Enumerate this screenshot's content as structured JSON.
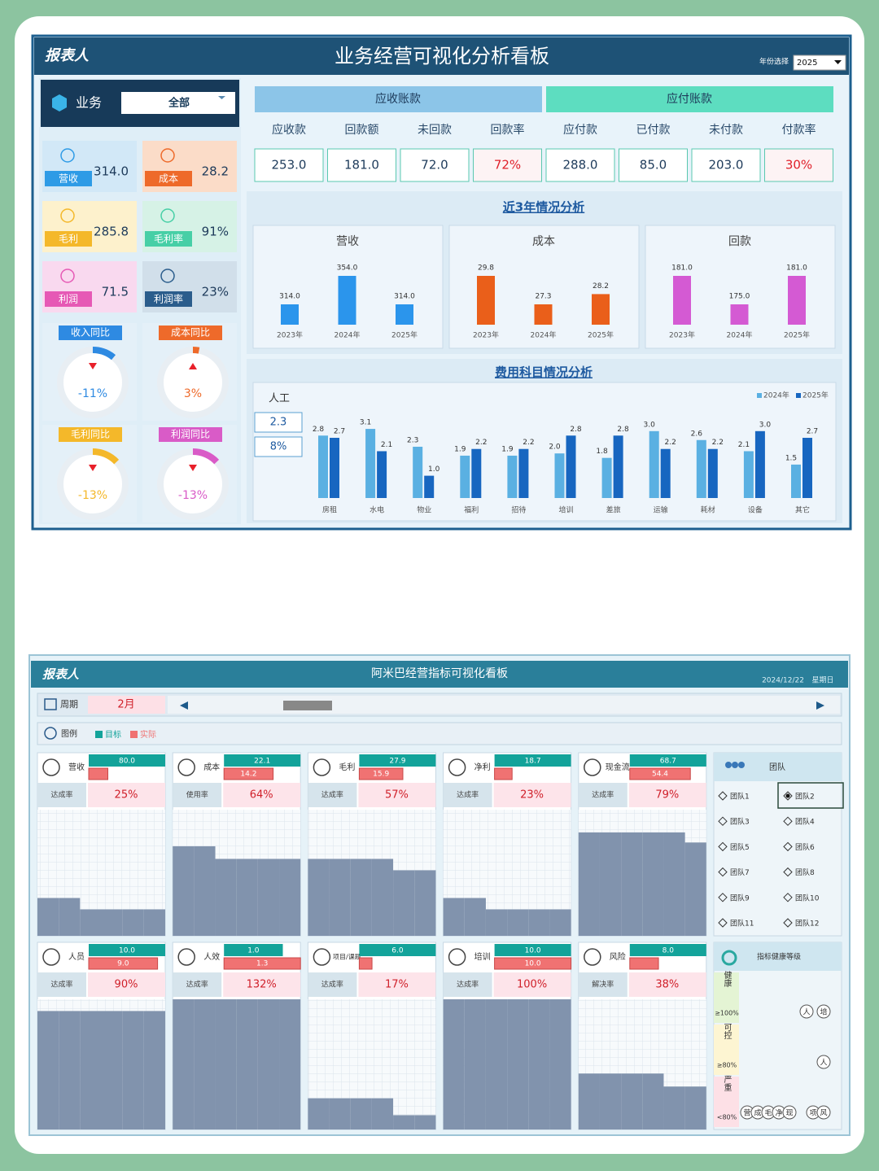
{
  "board1": {
    "logo": "报表人",
    "title": "业务经营可视化分析看板",
    "year_label": "年份选择",
    "year": "2025",
    "business_label": "业务",
    "business": "全部",
    "kpis": [
      {
        "label": "营收",
        "value": "314.0",
        "color": "#2e9be6",
        "bg": "#d2e8f7"
      },
      {
        "label": "成本",
        "value": "28.2",
        "color": "#ee6a2a",
        "bg": "#fbdcc8"
      },
      {
        "label": "毛利",
        "value": "285.8",
        "color": "#f4b82a",
        "bg": "#fdf1cc"
      },
      {
        "label": "毛利率",
        "value": "91%",
        "color": "#47cfa6",
        "bg": "#d6f2e6"
      },
      {
        "label": "利润",
        "value": "71.5",
        "color": "#e659b5",
        "bg": "#f9d9ef"
      },
      {
        "label": "利润率",
        "value": "23%",
        "color": "#2b5d8c",
        "bg": "#d1dfea"
      }
    ],
    "gauges": [
      {
        "label": "收入同比",
        "value": -11,
        "value_label": "-11%",
        "color": "#2e8ae2"
      },
      {
        "label": "成本同比",
        "value": 3,
        "value_label": "3%",
        "color": "#ee6a2a"
      },
      {
        "label": "毛利同比",
        "value": -13,
        "value_label": "-13%",
        "color": "#f4b82a"
      },
      {
        "label": "利润同比",
        "value": -13,
        "value_label": "-13%",
        "color": "#d95bc7"
      }
    ],
    "receivable": {
      "title": "应收账款",
      "columns": [
        "应收款",
        "回款额",
        "未回款",
        "回款率"
      ],
      "values": [
        "253.0",
        "181.0",
        "72.0",
        "72%"
      ]
    },
    "payable": {
      "title": "应付账款",
      "columns": [
        "应付款",
        "已付款",
        "未付款",
        "付款率"
      ],
      "values": [
        "288.0",
        "85.0",
        "203.0",
        "30%"
      ]
    },
    "trend": {
      "title": "近3年情况分析",
      "charts": [
        {
          "type": "bar",
          "title": "营收",
          "categories": [
            "2023年",
            "2024年",
            "2025年"
          ],
          "values": [
            314,
            354,
            314
          ],
          "value_labels": [
            "314.0",
            "354.0",
            "314.0"
          ],
          "color": "#2b95ec"
        },
        {
          "type": "bar",
          "title": "成本",
          "categories": [
            "2023年",
            "2024年",
            "2025年"
          ],
          "values": [
            29.8,
            27.3,
            28.2
          ],
          "value_labels": [
            "29.8",
            "27.3",
            "28.2"
          ],
          "color": "#ea5f1a"
        },
        {
          "type": "bar",
          "title": "回款",
          "categories": [
            "2023年",
            "2024年",
            "2025年"
          ],
          "values": [
            181,
            175,
            181
          ],
          "value_labels": [
            "181.0",
            "175.0",
            "181.0"
          ],
          "color": "#d45ad3"
        }
      ]
    },
    "expense": {
      "type": "bar",
      "title": "费用科目情况分析",
      "labor_label": "人工",
      "labor_value": "2.3",
      "labor_share": "8%",
      "categories": [
        "房租",
        "水电",
        "物业",
        "福利",
        "招待",
        "培训",
        "差旅",
        "运输",
        "耗材",
        "设备",
        "其它"
      ],
      "series": [
        {
          "name": "2024年",
          "color": "#5ab0e2",
          "values": [
            2.8,
            3.1,
            2.3,
            1.9,
            1.9,
            2.0,
            1.8,
            3.0,
            2.6,
            2.1,
            1.5
          ],
          "value_labels": [
            "2.8",
            "3.1",
            "2.3",
            "1.9",
            "1.9",
            "2.0",
            "1.8",
            "3.0",
            "2.6",
            "2.1",
            "1.5"
          ]
        },
        {
          "name": "2025年",
          "color": "#1766c0",
          "values": [
            2.7,
            2.1,
            1.0,
            2.2,
            2.2,
            2.8,
            2.8,
            2.2,
            2.2,
            3.0,
            2.7
          ],
          "value_labels": [
            "2.7",
            "2.1",
            "1.0",
            "2.2",
            "2.2",
            "2.8",
            "2.8",
            "2.2",
            "2.2",
            "3.0",
            "2.7"
          ]
        }
      ]
    }
  },
  "board2": {
    "logo": "报表人",
    "title": "阿米巴经营指标可视化看板",
    "date": "2024/12/22",
    "weekday": "星期日",
    "period_label": "周期",
    "period": "2月",
    "legend_label": "图例",
    "target_name": "目标",
    "actual_name": "实际",
    "target_color": "#13a39a",
    "actual_color": "#f07272",
    "cards": [
      {
        "label": "营收",
        "target": 80,
        "target_label": "80.0",
        "actual": 20,
        "metric": "达成率",
        "rate": "25%",
        "steps": [
          30,
          30,
          21,
          21,
          21,
          21
        ]
      },
      {
        "label": "成本",
        "target": 22.1,
        "target_label": "22.1",
        "actual": 14.2,
        "actual_label": "14.2",
        "metric": "使用率",
        "rate": "64%",
        "steps": [
          71,
          71,
          61,
          61,
          61,
          61
        ]
      },
      {
        "label": "毛利",
        "target": 27.9,
        "target_label": "27.9",
        "actual": 15.9,
        "actual_label": "15.9",
        "metric": "达成率",
        "rate": "57%",
        "steps": [
          61,
          61,
          61,
          61,
          52,
          52
        ]
      },
      {
        "label": "净利",
        "target": 18.7,
        "target_label": "18.7",
        "actual": 4.3,
        "metric": "达成率",
        "rate": "23%",
        "steps": [
          30,
          30,
          21,
          21,
          21,
          21
        ]
      },
      {
        "label": "现金流",
        "target": 68.7,
        "target_label": "68.7",
        "actual": 54.4,
        "actual_label": "54.4",
        "metric": "达成率",
        "rate": "79%",
        "steps": [
          82,
          82,
          82,
          82,
          82,
          74
        ]
      },
      {
        "label": "人员",
        "target": 10,
        "target_label": "10.0",
        "actual": 9,
        "actual_label": "9.0",
        "metric": "达成率",
        "rate": "90%",
        "steps": [
          91,
          91,
          91,
          91,
          91,
          91
        ]
      },
      {
        "label": "人效",
        "target": 1,
        "target_label": "1.0",
        "actual": 1.3,
        "actual_label": "1.3",
        "metric": "达成率",
        "rate": "132%",
        "steps": [
          100,
          100,
          100,
          100,
          100,
          100
        ]
      },
      {
        "label": "项目/课题",
        "target": 6,
        "target_label": "6.0",
        "actual": 1,
        "metric": "达成率",
        "rate": "17%",
        "steps": [
          24,
          24,
          24,
          24,
          11,
          11
        ]
      },
      {
        "label": "培训",
        "target": 10,
        "target_label": "10.0",
        "actual": 10,
        "actual_label": "10.0",
        "metric": "达成率",
        "rate": "100%",
        "steps": [
          100,
          100,
          100,
          100,
          100,
          100
        ]
      },
      {
        "label": "风险",
        "target": 8,
        "target_label": "8.0",
        "actual": 3,
        "metric": "解决率",
        "rate": "38%",
        "steps": [
          43,
          43,
          43,
          43,
          33,
          33
        ]
      }
    ],
    "team": {
      "title": "团队",
      "options": [
        "团队1",
        "团队2",
        "团队3",
        "团队4",
        "团队5",
        "团队6",
        "团队7",
        "团队8",
        "团队9",
        "团队10",
        "团队11",
        "团队12"
      ],
      "selected": 1
    },
    "health": {
      "title": "指标健康等级",
      "levels": [
        {
          "name": "健康",
          "threshold": "≥100%",
          "color": "#e4f4d4",
          "items": [
            "人",
            "培"
          ]
        },
        {
          "name": "可控",
          "threshold": "≥80%",
          "color": "#fdf5d2",
          "items": [
            "人"
          ]
        },
        {
          "name": "严重",
          "threshold": "<80%",
          "color": "#fde0e6",
          "items": [
            "营",
            "成",
            "毛",
            "净",
            "现",
            "项",
            "风"
          ]
        }
      ]
    }
  }
}
